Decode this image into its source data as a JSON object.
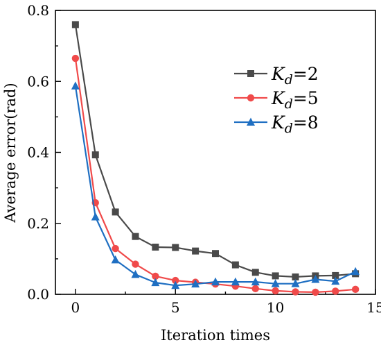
{
  "chart_data": {
    "type": "line",
    "title": "",
    "xlabel": "Iteration times",
    "ylabel": "Average error(rad)",
    "xlim": [
      -1,
      15
    ],
    "ylim": [
      0,
      0.8
    ],
    "xticks": [
      0,
      5,
      10,
      15
    ],
    "yticks": [
      0.0,
      0.2,
      0.4,
      0.6,
      0.8
    ],
    "xtick_labels": [
      "0",
      "5",
      "10",
      "15"
    ],
    "ytick_labels": [
      "0.0",
      "0.2",
      "0.4",
      "0.6",
      "0.8"
    ],
    "x": [
      0,
      1,
      2,
      3,
      4,
      5,
      6,
      7,
      8,
      9,
      10,
      11,
      12,
      13,
      14
    ],
    "legend_position": "upper-right",
    "grid": false,
    "series": [
      {
        "name": "Kd=2",
        "legend_symbol": "K",
        "legend_subscript": "d",
        "legend_rest": "=2",
        "color": "#4a4a4a",
        "marker": "square",
        "values": [
          0.76,
          0.393,
          0.232,
          0.163,
          0.133,
          0.132,
          0.122,
          0.115,
          0.083,
          0.062,
          0.052,
          0.049,
          0.052,
          0.053,
          0.058
        ]
      },
      {
        "name": "Kd=5",
        "legend_symbol": "K",
        "legend_subscript": "d",
        "legend_rest": "=5",
        "color": "#f04a4a",
        "marker": "circle",
        "values": [
          0.665,
          0.258,
          0.129,
          0.085,
          0.051,
          0.039,
          0.034,
          0.029,
          0.023,
          0.016,
          0.01,
          0.007,
          0.006,
          0.009,
          0.014
        ]
      },
      {
        "name": "Kd=8",
        "legend_symbol": "K",
        "legend_subscript": "d",
        "legend_rest": "=8",
        "color": "#1f6fc2",
        "marker": "triangle",
        "values": [
          0.587,
          0.218,
          0.097,
          0.056,
          0.033,
          0.025,
          0.029,
          0.035,
          0.035,
          0.035,
          0.03,
          0.03,
          0.042,
          0.037,
          0.064
        ]
      }
    ]
  }
}
